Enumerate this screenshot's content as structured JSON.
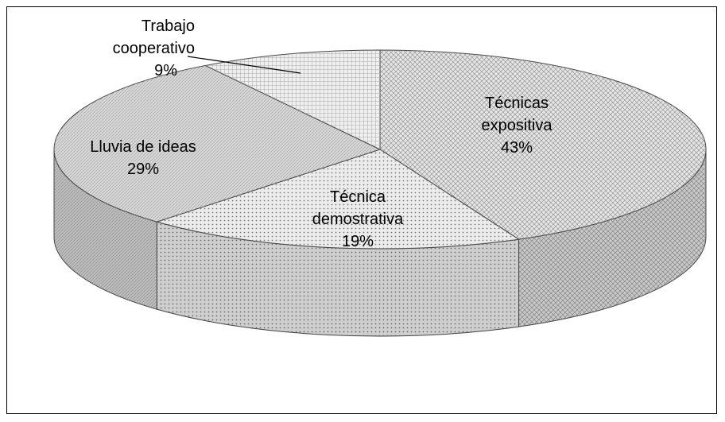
{
  "chart_data": {
    "type": "pie",
    "categories": [
      "Técnicas expositiva",
      "Técnica demostrativa",
      "Lluvia de ideas",
      "Trabajo cooperativo"
    ],
    "values": [
      43,
      19,
      29,
      9
    ],
    "value_labels": [
      "43%",
      "19%",
      "29%",
      "9%"
    ],
    "colors": [
      "#e4e4e4",
      "#ececec",
      "#d8d8d8",
      "#efefef"
    ]
  }
}
